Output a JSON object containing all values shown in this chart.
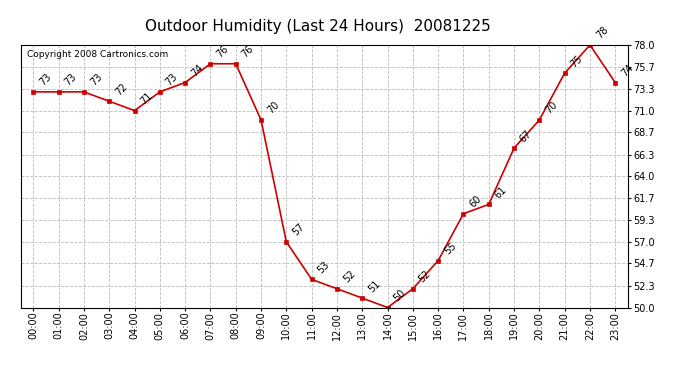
{
  "title": "Outdoor Humidity (Last 24 Hours)  20081225",
  "copyright": "Copyright 2008 Cartronics.com",
  "x_labels": [
    "00:00",
    "01:00",
    "02:00",
    "03:00",
    "04:00",
    "05:00",
    "06:00",
    "07:00",
    "08:00",
    "09:00",
    "10:00",
    "11:00",
    "12:00",
    "13:00",
    "14:00",
    "15:00",
    "16:00",
    "17:00",
    "18:00",
    "19:00",
    "20:00",
    "21:00",
    "22:00",
    "23:00"
  ],
  "y_values": [
    73,
    73,
    73,
    72,
    71,
    73,
    74,
    76,
    76,
    70,
    57,
    53,
    52,
    51,
    50,
    52,
    55,
    60,
    61,
    67,
    70,
    75,
    78,
    74
  ],
  "ylim": [
    50.0,
    78.0
  ],
  "yticks": [
    50.0,
    52.3,
    54.7,
    57.0,
    59.3,
    61.7,
    64.0,
    66.3,
    68.7,
    71.0,
    73.3,
    75.7,
    78.0
  ],
  "line_color": "#cc0000",
  "marker_color": "#cc0000",
  "background_color": "#ffffff",
  "grid_color": "#bbbbbb",
  "title_fontsize": 11,
  "label_fontsize": 7,
  "tick_fontsize": 7,
  "copyright_fontsize": 6.5
}
